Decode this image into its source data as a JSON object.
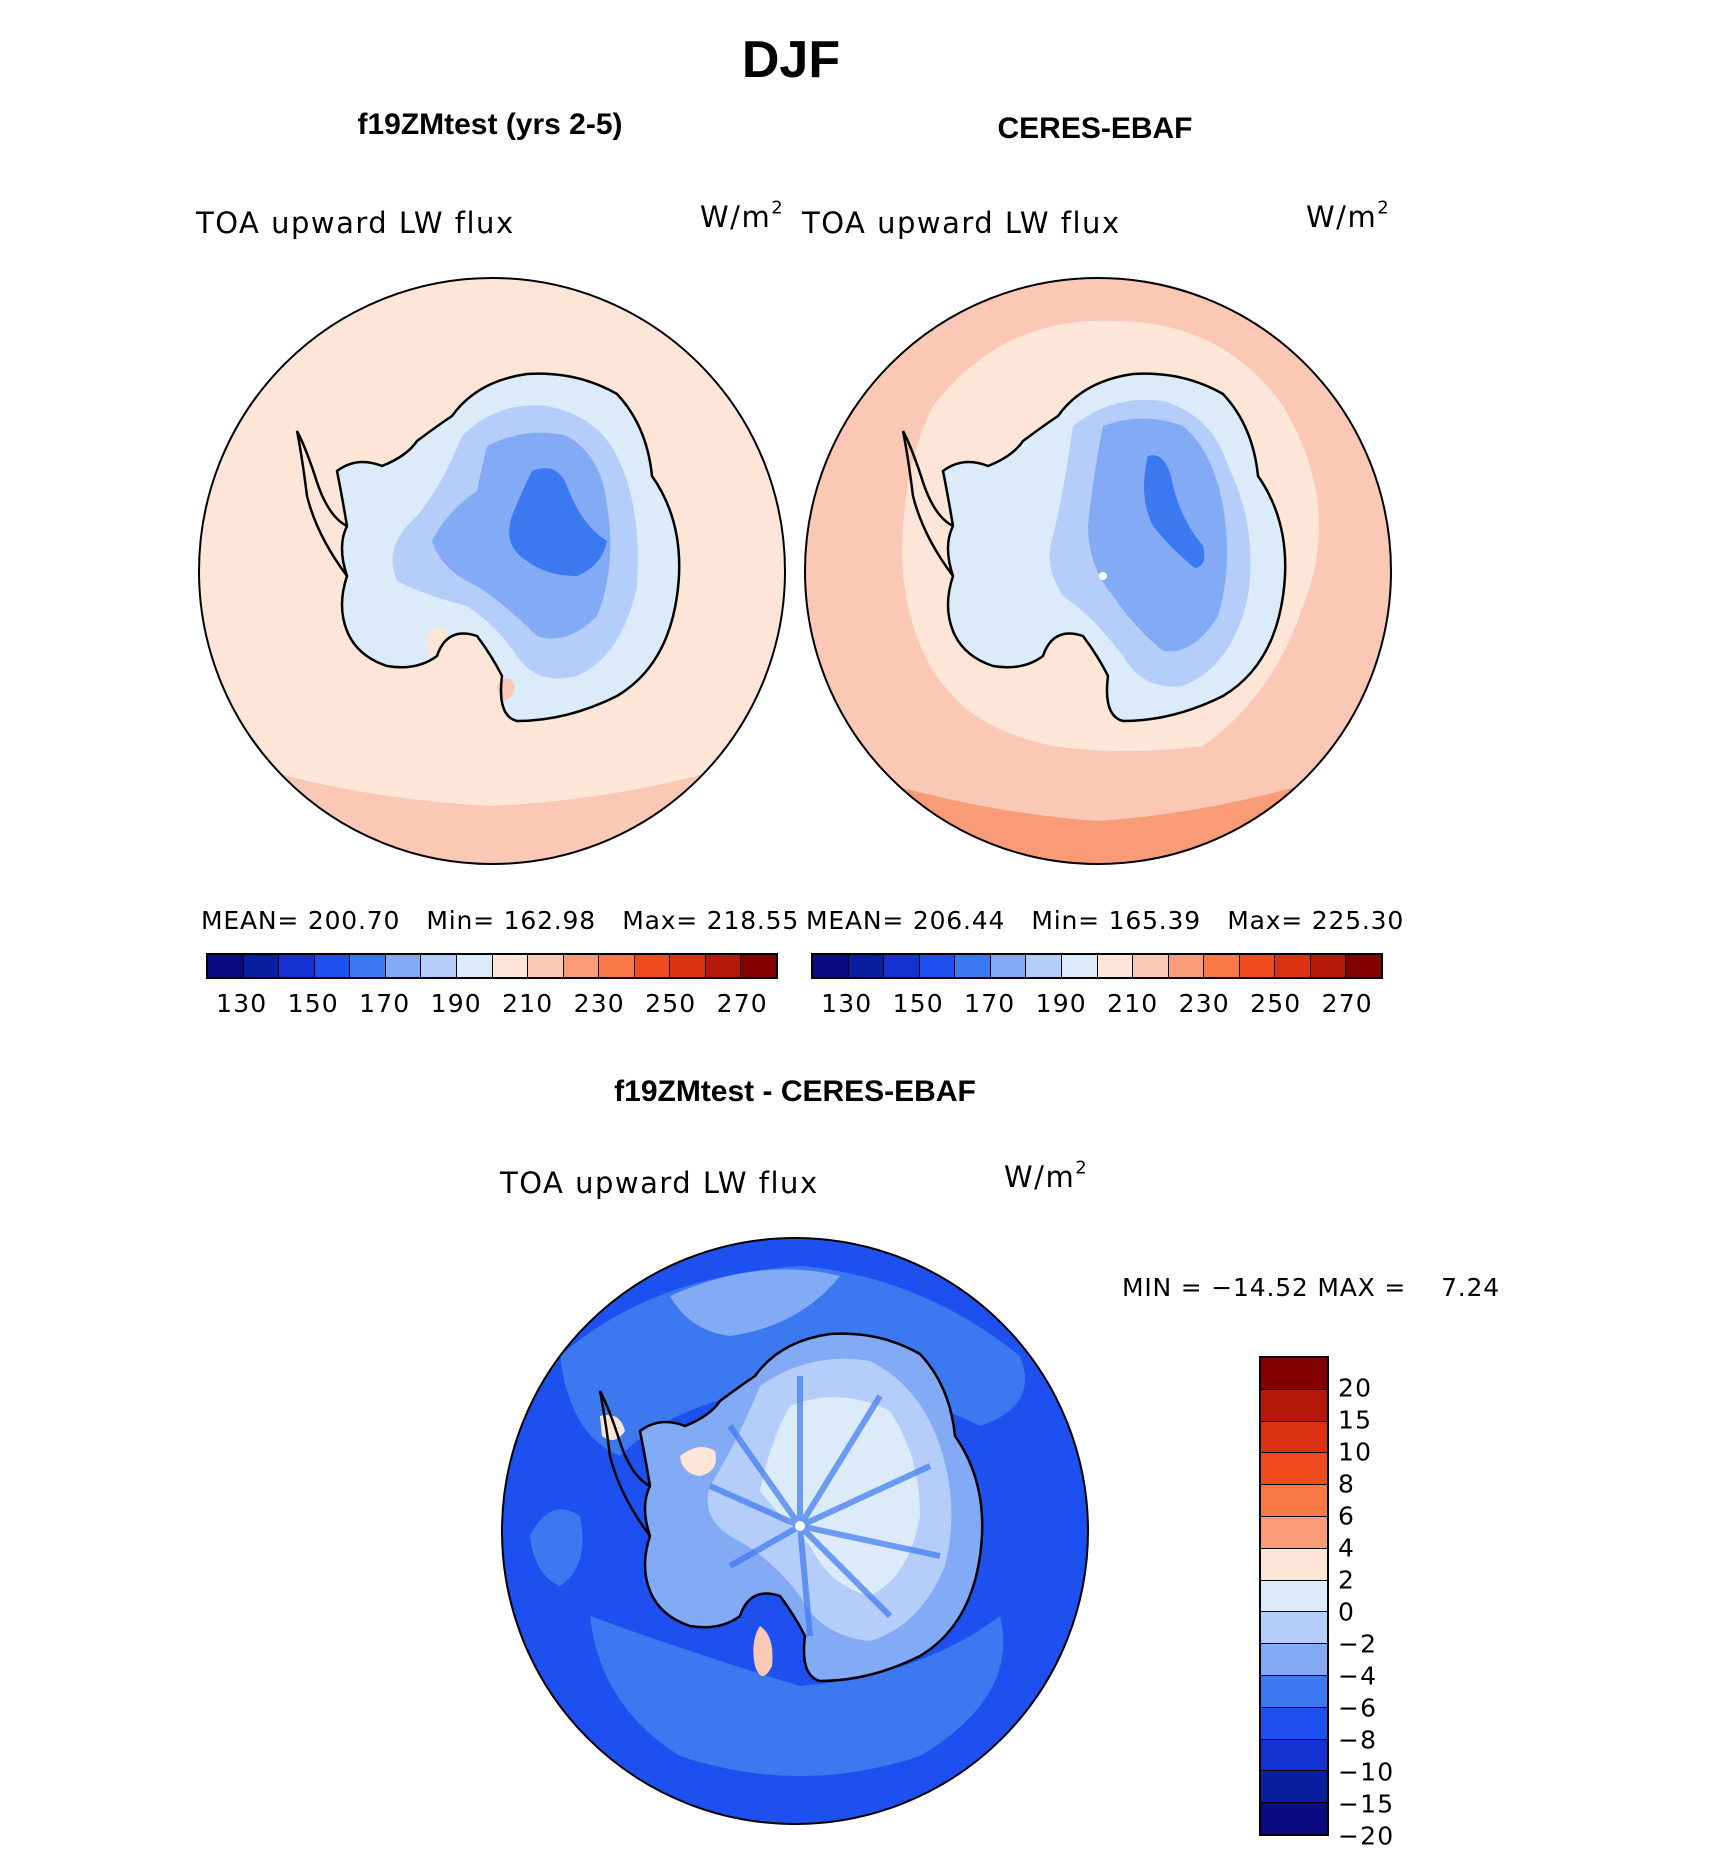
{
  "title": "DJF",
  "panels": [
    {
      "name": "f19ZMtest (yrs 2-5)",
      "variable": "TOA upward LW flux",
      "units_base": "W/m",
      "units_exp": "2",
      "mean_label": "MEAN=",
      "mean": "200.70",
      "min_label": "Min=",
      "min": "162.98",
      "max_label": "Max=",
      "max": "218.55"
    },
    {
      "name": "CERES-EBAF",
      "variable": "TOA upward LW flux",
      "units_base": "W/m",
      "units_exp": "2",
      "mean_label": "MEAN=",
      "mean": "206.44",
      "min_label": "Min=",
      "min": "165.39",
      "max_label": "Max=",
      "max": "225.30"
    }
  ],
  "abs_colorbar": {
    "colors": [
      "#0a0a82",
      "#0a1ea0",
      "#1432d2",
      "#1e50f0",
      "#3c78f0",
      "#82aaf5",
      "#b4cdfa",
      "#dcebfa",
      "#fde6d7",
      "#fac8b4",
      "#fa9b78",
      "#fa7846",
      "#f04b1e",
      "#dc3214",
      "#b4190a",
      "#820000"
    ],
    "labels": [
      "130",
      "150",
      "170",
      "190",
      "210",
      "230",
      "250",
      "270"
    ]
  },
  "diff_panel": {
    "title": "f19ZMtest - CERES-EBAF",
    "variable": "TOA upward LW flux",
    "units_base": "W/m",
    "units_exp": "2",
    "min_label": "MIN =",
    "min": "−14.52",
    "max_label": "MAX =",
    "max": "7.24"
  },
  "diff_colorbar": {
    "colors": [
      "#820000",
      "#b4190a",
      "#dc3214",
      "#f04b1e",
      "#fa7846",
      "#fa9b78",
      "#fde6d7",
      "#dcebfa",
      "#b4cdfa",
      "#82aaf5",
      "#3c78f0",
      "#1e50f0",
      "#1432d2",
      "#0a1ea0",
      "#0a0a82"
    ],
    "labels": [
      "20",
      "15",
      "10",
      "8",
      "6",
      "4",
      "2",
      "0",
      "−2",
      "−4",
      "−6",
      "−8",
      "−10",
      "−15",
      "−20"
    ]
  }
}
